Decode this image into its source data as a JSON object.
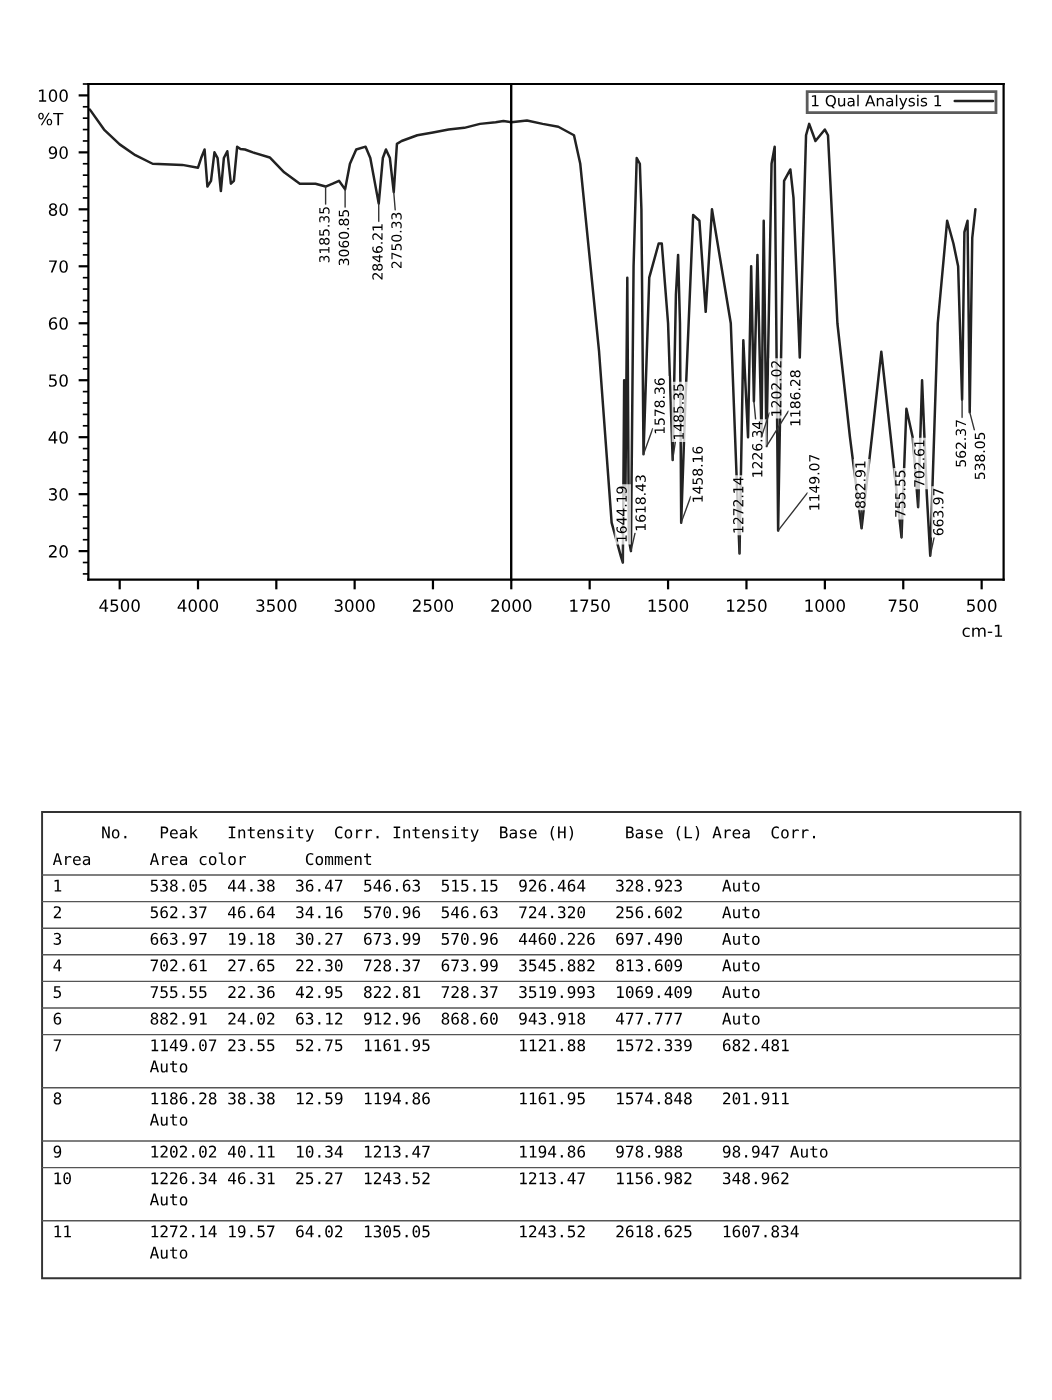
{
  "chart_data": [
    {
      "type": "line",
      "ylabel": "%T",
      "xlim": [
        4700,
        2000
      ],
      "xticks": [
        4500,
        4000,
        3500,
        3000,
        2500,
        2000
      ],
      "ylim": [
        15,
        102
      ],
      "yticks": [
        20,
        30,
        40,
        50,
        60,
        70,
        80,
        90,
        100
      ],
      "marker": "none",
      "line_style": "solid",
      "series": [
        {
          "color": "#222222",
          "x": [
            4690,
            4600,
            4500,
            4400,
            4290,
            4100,
            4000,
            3980,
            3958,
            3940,
            3917,
            3895,
            3875,
            3854,
            3835,
            3813,
            3790,
            3771,
            3750,
            3729,
            3700,
            3650,
            3542,
            3450,
            3350,
            3250,
            3185.35,
            3140,
            3100,
            3060.85,
            3030,
            2990,
            2930,
            2900,
            2846.21,
            2820,
            2800,
            2775,
            2750.33,
            2730,
            2700,
            2600,
            2500,
            2400,
            2300,
            2200,
            2100,
            2050,
            2000
          ],
          "values": [
            97.5,
            94,
            91.4,
            89.5,
            88,
            87.8,
            87.3,
            89,
            90.5,
            84,
            85,
            90,
            89,
            83.2,
            89,
            90.2,
            84.5,
            85,
            91,
            90.6,
            90.5,
            90,
            89.1,
            86.5,
            84.5,
            84.5,
            84,
            84.5,
            85,
            83.5,
            88,
            90.5,
            91,
            89,
            81,
            89,
            90.5,
            89,
            83,
            91.5,
            92,
            93,
            93.5,
            94,
            94.3,
            95,
            95.3,
            95.5,
            95.3
          ]
        }
      ],
      "annotations": [
        {
          "text": "3185.35",
          "x": 3185.35,
          "y": 84
        },
        {
          "text": "3060.85",
          "x": 3060.85,
          "y": 83.5
        },
        {
          "text": "2846.21",
          "x": 2846.21,
          "y": 81
        },
        {
          "text": "2750.33",
          "x": 2750.33,
          "y": 83
        }
      ]
    },
    {
      "type": "line",
      "xlabel": "cm-1",
      "xlim": [
        2000,
        430
      ],
      "xticks": [
        1750,
        1500,
        1250,
        1000,
        750,
        500
      ],
      "ylim": [
        15,
        102
      ],
      "yticks": [
        20,
        30,
        40,
        50,
        60,
        70,
        80,
        90,
        100
      ],
      "tick_labels": "x",
      "legend": "top right",
      "marker": "none",
      "line_style": "solid",
      "series": [
        {
          "name": "1 Qual Analysis 1",
          "color": "#222222",
          "x": [
            2000,
            1950,
            1900,
            1850,
            1800,
            1780,
            1720,
            1680,
            1650,
            1644.19,
            1640,
            1636,
            1630,
            1625,
            1618.43,
            1610,
            1600,
            1590,
            1585,
            1578.36,
            1560,
            1530,
            1520,
            1500,
            1485.35,
            1475,
            1468,
            1462,
            1458.16,
            1445,
            1420,
            1400,
            1380,
            1360,
            1300,
            1272.14,
            1260,
            1245,
            1235,
            1226.34,
            1215,
            1202.02,
            1195,
            1186.28,
            1170,
            1160,
            1149.07,
            1130,
            1110,
            1100,
            1080,
            1060,
            1050,
            1030,
            1000,
            990,
            960,
            920,
            882.91,
            850,
            820,
            790,
            755.55,
            740,
            720,
            702.61,
            690,
            675,
            663.97,
            640,
            610,
            590,
            575,
            562.37,
            555,
            545,
            538.05,
            530,
            520
          ],
          "values": [
            95.3,
            95.6,
            95,
            94.5,
            93,
            88,
            55,
            25,
            19,
            18,
            50,
            30,
            68,
            22,
            20,
            70,
            89,
            88,
            80,
            37,
            68,
            74,
            74,
            60,
            36,
            65,
            72,
            60,
            25,
            46,
            79,
            78,
            62,
            80,
            60,
            19.6,
            57,
            40,
            70,
            46.3,
            72,
            40.1,
            78,
            38.4,
            88,
            91,
            23.6,
            85,
            87,
            82,
            54,
            93,
            95,
            92,
            94,
            93,
            60,
            40,
            24,
            40,
            55,
            40,
            22.4,
            45,
            40,
            27.7,
            50,
            30,
            19.2,
            60,
            78,
            74,
            70,
            46.6,
            76,
            78,
            44.4,
            75,
            80
          ]
        }
      ],
      "annotations": [
        {
          "text": "1644.19",
          "x": 1644.19,
          "y": 18
        },
        {
          "text": "1618.43",
          "x": 1618.43,
          "y": 20
        },
        {
          "text": "1578.36",
          "x": 1578.36,
          "y": 37
        },
        {
          "text": "1485.35",
          "x": 1485.35,
          "y": 36
        },
        {
          "text": "1458.16",
          "x": 1458.16,
          "y": 25
        },
        {
          "text": "1272.14",
          "x": 1272.14,
          "y": 19.6
        },
        {
          "text": "1226.34",
          "x": 1226.34,
          "y": 46.3
        },
        {
          "text": "1202.02",
          "x": 1202.02,
          "y": 40.1
        },
        {
          "text": "1186.28",
          "x": 1186.28,
          "y": 38.4
        },
        {
          "text": "1149.07",
          "x": 1149.07,
          "y": 23.6
        },
        {
          "text": "882.91",
          "x": 882.91,
          "y": 24
        },
        {
          "text": "755.55",
          "x": 755.55,
          "y": 22.4
        },
        {
          "text": "702.61",
          "x": 702.61,
          "y": 27.7
        },
        {
          "text": "663.97",
          "x": 663.97,
          "y": 19.2
        },
        {
          "text": "562.37",
          "x": 562.37,
          "y": 46.6
        },
        {
          "text": "538.05",
          "x": 538.05,
          "y": 44.4
        },
        "     No.   Peak   Intensity  Corr. Intensity  Base (H)     Base (L) Area  Corr.",
        "Area      Area color      Comment",
        "1         538.05  44.38  36.47  546.63  515.15  926.464   328.923    Auto",
        "2         562.37  46.64  34.16  570.96  546.63  724.320   256.602    Auto",
        "3         663.97  19.18  30.27  673.99  570.96  4460.226  697.490    Auto",
        "4         702.61  27.65  22.30  728.37  673.99  3545.882  813.609    Auto",
        "5         755.55  22.36  42.95  822.81  728.37  3519.993  1069.409   Auto",
        "6         882.91  24.02  63.12  912.96  868.60  943.918   477.777    Auto",
        "7         1149.07 23.55  52.75  1161.95         1121.88   1572.339   682.481\n          Auto",
        "8         1186.28 38.38  12.59  1194.86         1161.95   1574.848   201.911\n          Auto",
        "9         1202.02 40.11  10.34  1213.47         1194.86   978.988    98.947 Auto",
        "10        1226.34 46.31  25.27  1243.52         1213.47   1156.982   348.962\n          Auto",
        "11        1272.14 19.57  64.02  1305.05         1243.52   2618.625   1607.834\n          Auto"
      ]
    }
  ]
}
